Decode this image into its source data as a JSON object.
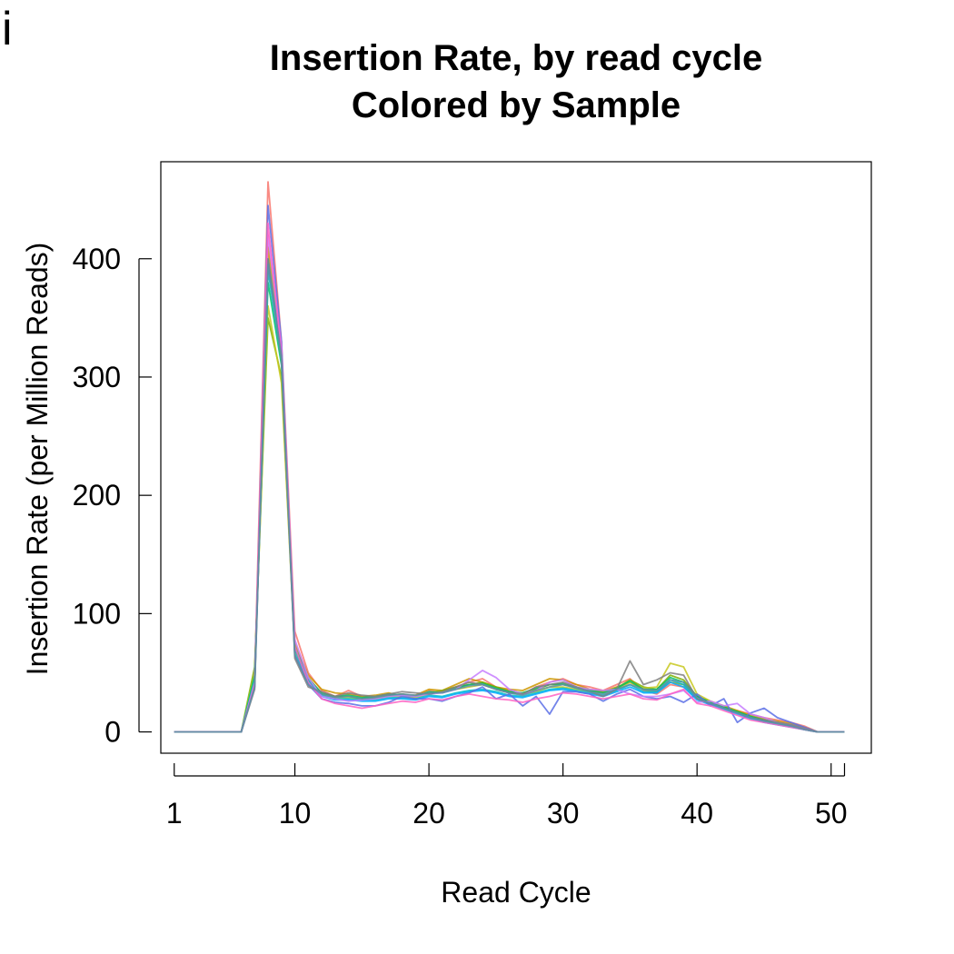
{
  "panel_label": "i",
  "chart_data": {
    "type": "line",
    "title": "Insertion Rate, by read cycle",
    "subtitle": "Colored by Sample",
    "xlabel": "Read Cycle",
    "ylabel": "Insertion Rate (per Million Reads)",
    "xlim": [
      0,
      53
    ],
    "ylim": [
      -18,
      482
    ],
    "x_ticks": [
      1,
      10,
      20,
      30,
      40,
      50,
      51
    ],
    "x_tick_labels": [
      "1",
      "10",
      "20",
      "30",
      "40",
      "50",
      ""
    ],
    "y_ticks": [
      0,
      100,
      200,
      300,
      400
    ],
    "y_tick_labels": [
      "0",
      "100",
      "200",
      "300",
      "400"
    ],
    "grid": false,
    "legend": "none",
    "x": [
      1,
      2,
      3,
      4,
      5,
      6,
      7,
      8,
      9,
      10,
      11,
      12,
      13,
      14,
      15,
      16,
      17,
      18,
      19,
      20,
      21,
      22,
      23,
      24,
      25,
      26,
      27,
      28,
      29,
      30,
      31,
      32,
      33,
      34,
      35,
      36,
      37,
      38,
      39,
      40,
      41,
      42,
      43,
      44,
      45,
      46,
      47,
      48,
      49,
      50,
      51
    ],
    "series": [
      {
        "color": "#f8766d",
        "values": [
          0,
          0,
          0,
          0,
          0,
          0,
          45,
          465,
          330,
          85,
          50,
          35,
          30,
          35,
          30,
          28,
          30,
          32,
          30,
          35,
          33,
          38,
          42,
          45,
          38,
          35,
          32,
          38,
          42,
          45,
          40,
          38,
          35,
          40,
          45,
          35,
          32,
          40,
          38,
          28,
          25,
          20,
          18,
          15,
          12,
          10,
          8,
          5,
          0,
          0,
          0
        ]
      },
      {
        "color": "#cd9600",
        "values": [
          0,
          0,
          0,
          0,
          0,
          0,
          42,
          410,
          320,
          75,
          48,
          36,
          33,
          32,
          30,
          31,
          33,
          30,
          31,
          36,
          35,
          40,
          45,
          42,
          38,
          36,
          35,
          40,
          45,
          44,
          40,
          36,
          34,
          38,
          42,
          36,
          34,
          42,
          40,
          30,
          26,
          22,
          18,
          14,
          11,
          9,
          7,
          4,
          0,
          0,
          0
        ]
      },
      {
        "color": "#7cae00",
        "values": [
          0,
          0,
          0,
          0,
          0,
          0,
          55,
          350,
          300,
          70,
          46,
          32,
          30,
          30,
          28,
          29,
          31,
          32,
          30,
          33,
          35,
          38,
          40,
          42,
          38,
          34,
          33,
          36,
          40,
          40,
          38,
          35,
          34,
          37,
          44,
          38,
          36,
          48,
          44,
          30,
          25,
          21,
          17,
          13,
          10,
          8,
          6,
          3,
          0,
          0,
          0
        ]
      },
      {
        "color": "#c8c820",
        "values": [
          0,
          0,
          0,
          0,
          0,
          0,
          50,
          360,
          295,
          68,
          44,
          30,
          29,
          29,
          27,
          28,
          30,
          30,
          29,
          32,
          34,
          36,
          38,
          40,
          36,
          33,
          32,
          34,
          38,
          38,
          36,
          34,
          33,
          36,
          42,
          37,
          38,
          58,
          55,
          32,
          26,
          20,
          16,
          12,
          9,
          7,
          5,
          2,
          0,
          0,
          0
        ]
      },
      {
        "color": "#00be67",
        "values": [
          0,
          0,
          0,
          0,
          0,
          0,
          48,
          380,
          310,
          72,
          45,
          33,
          30,
          31,
          29,
          30,
          32,
          31,
          30,
          34,
          33,
          37,
          40,
          41,
          37,
          34,
          33,
          37,
          40,
          41,
          37,
          35,
          33,
          37,
          43,
          36,
          36,
          46,
          42,
          30,
          25,
          21,
          17,
          13,
          10,
          8,
          6,
          3,
          0,
          0,
          0
        ]
      },
      {
        "color": "#00bfc4",
        "values": [
          0,
          0,
          0,
          0,
          0,
          0,
          44,
          390,
          315,
          70,
          44,
          31,
          28,
          28,
          27,
          27,
          29,
          29,
          28,
          31,
          30,
          33,
          35,
          36,
          34,
          31,
          30,
          33,
          36,
          37,
          35,
          33,
          31,
          35,
          40,
          34,
          34,
          44,
          40,
          28,
          24,
          20,
          16,
          12,
          9,
          7,
          5,
          2,
          0,
          0,
          0
        ]
      },
      {
        "color": "#00a9ff",
        "values": [
          0,
          0,
          0,
          0,
          0,
          0,
          40,
          400,
          320,
          66,
          42,
          30,
          27,
          27,
          26,
          26,
          28,
          28,
          27,
          30,
          29,
          32,
          34,
          35,
          33,
          30,
          29,
          32,
          35,
          36,
          34,
          32,
          30,
          34,
          38,
          33,
          33,
          42,
          38,
          27,
          23,
          19,
          15,
          11,
          8,
          6,
          4,
          2,
          0,
          0,
          0
        ]
      },
      {
        "color": "#5a6ee6",
        "values": [
          0,
          0,
          0,
          0,
          0,
          0,
          38,
          445,
          330,
          64,
          40,
          28,
          25,
          24,
          22,
          22,
          25,
          30,
          28,
          28,
          26,
          30,
          33,
          38,
          28,
          32,
          22,
          30,
          15,
          34,
          34,
          32,
          26,
          32,
          36,
          30,
          28,
          30,
          25,
          32,
          22,
          28,
          8,
          16,
          20,
          12,
          8,
          4,
          0,
          0,
          0
        ]
      },
      {
        "color": "#c77cff",
        "values": [
          0,
          0,
          0,
          0,
          0,
          0,
          42,
          420,
          325,
          78,
          46,
          30,
          28,
          26,
          27,
          28,
          30,
          31,
          30,
          32,
          33,
          36,
          44,
          52,
          46,
          36,
          32,
          35,
          42,
          44,
          38,
          36,
          35,
          36,
          32,
          30,
          30,
          32,
          35,
          25,
          26,
          22,
          24,
          15,
          12,
          8,
          6,
          3,
          0,
          0,
          0
        ]
      },
      {
        "color": "#ff61c3",
        "values": [
          0,
          0,
          0,
          0,
          0,
          0,
          40,
          430,
          320,
          72,
          42,
          28,
          24,
          22,
          20,
          22,
          24,
          26,
          25,
          28,
          27,
          30,
          32,
          30,
          28,
          27,
          25,
          28,
          30,
          33,
          32,
          30,
          28,
          30,
          32,
          28,
          27,
          32,
          36,
          24,
          22,
          18,
          14,
          10,
          8,
          6,
          4,
          2,
          0,
          0,
          0
        ]
      },
      {
        "color": "#808080",
        "values": [
          0,
          0,
          0,
          0,
          0,
          0,
          36,
          400,
          315,
          62,
          38,
          34,
          30,
          33,
          31,
          30,
          32,
          34,
          33,
          32,
          34,
          38,
          42,
          40,
          36,
          33,
          32,
          38,
          40,
          42,
          38,
          34,
          30,
          36,
          60,
          40,
          44,
          50,
          48,
          28,
          24,
          20,
          16,
          12,
          10,
          8,
          6,
          3,
          0,
          0,
          0
        ]
      },
      {
        "color": "#5b8fa8",
        "values": [
          0,
          0,
          0,
          0,
          0,
          0,
          38,
          395,
          318,
          65,
          40,
          32,
          29,
          30,
          28,
          29,
          31,
          32,
          31,
          33,
          33,
          36,
          39,
          40,
          36,
          33,
          31,
          35,
          38,
          40,
          37,
          34,
          32,
          36,
          40,
          36,
          35,
          44,
          42,
          29,
          24,
          20,
          16,
          12,
          9,
          7,
          5,
          2,
          0,
          0,
          0
        ]
      }
    ]
  }
}
